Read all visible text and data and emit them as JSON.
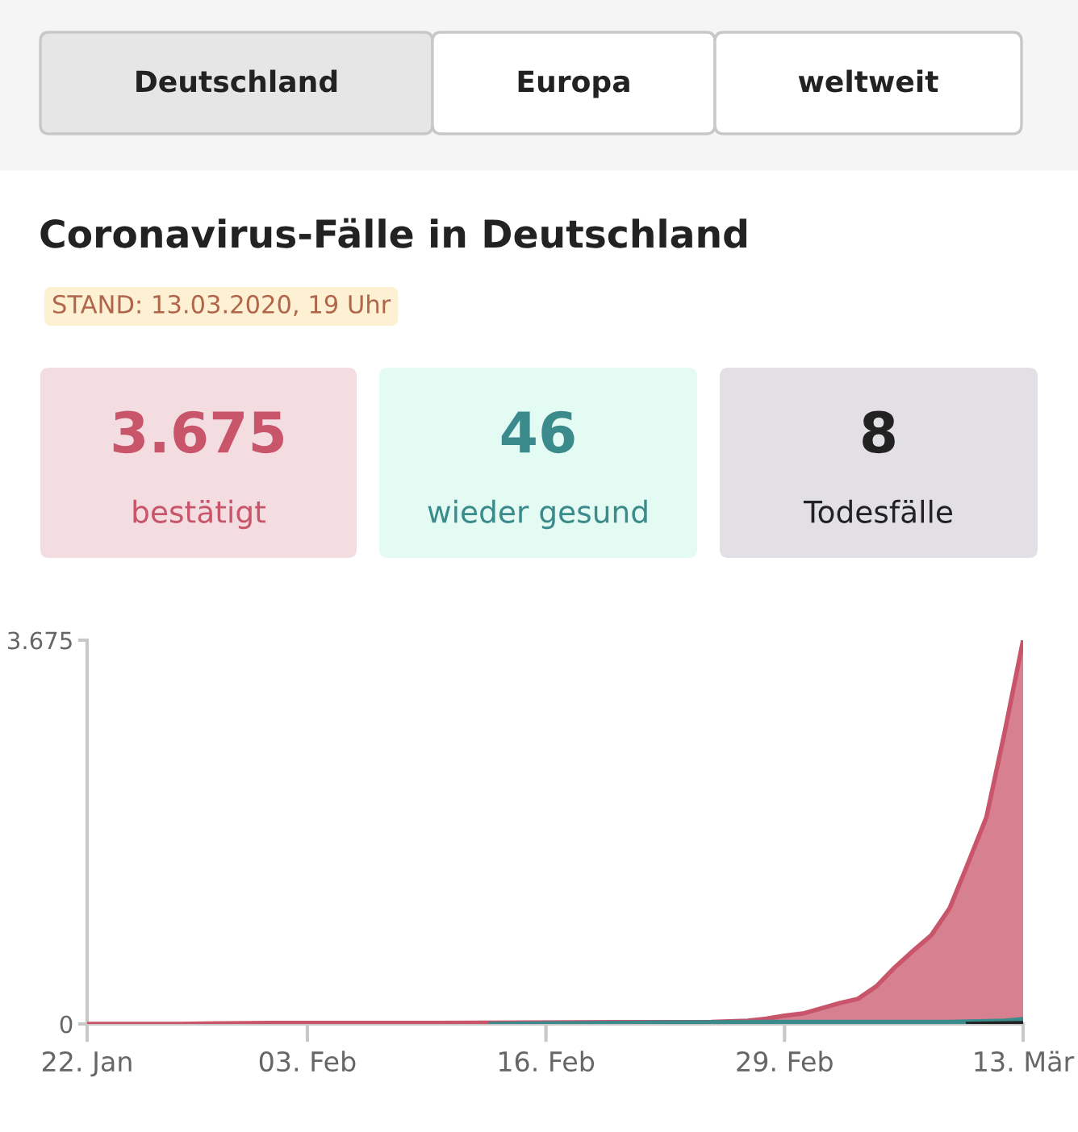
{
  "chart_data": {
    "type": "area",
    "title": "Coronavirus-Fälle in Deutschland",
    "subtitle": "STAND: 13.03.2020, 19 Uhr",
    "annotations": [
      "Deutschland",
      "Europa",
      "weltweit",
      "3.675",
      "bestätigt",
      "46",
      "wieder gesund",
      "8",
      "Todesfälle"
    ],
    "series": [
      {
        "color": "#c9556b",
        "x": [
          "2020-01-22",
          "2020-01-27",
          "2020-02-01",
          "2020-02-10",
          "2020-02-25",
          "2020-02-27",
          "2020-02-28",
          "2020-02-29",
          "2020-03-01",
          "2020-03-02",
          "2020-03-03",
          "2020-03-04",
          "2020-03-05",
          "2020-03-06",
          "2020-03-07",
          "2020-03-08",
          "2020-03-09",
          "2020-03-10",
          "2020-03-11",
          "2020-03-12",
          "2020-03-13"
        ],
        "values": [
          0,
          0,
          10,
          10,
          20,
          30,
          50,
          80,
          100,
          150,
          200,
          240,
          360,
          540,
          700,
          850,
          1110,
          1540,
          1980,
          2800,
          3675
        ]
      },
      {
        "type": "line",
        "color": "#3b8a8c",
        "x": [
          "2020-02-13",
          "2020-02-28",
          "2020-03-09",
          "2020-03-12",
          "2020-03-13"
        ],
        "values": [
          0,
          20,
          20,
          30,
          46
        ]
      },
      {
        "type": "line",
        "color": "#222222",
        "x": [
          "2020-03-10",
          "2020-03-13"
        ],
        "values": [
          0,
          8
        ]
      }
    ],
    "xlim": [
      "2020-01-22",
      "2020-03-13"
    ],
    "xticks": [
      {
        "value": "2020-01-22",
        "label": "22. Jan"
      },
      {
        "value": "2020-02-03",
        "label": "03. Feb"
      },
      {
        "value": "2020-02-16",
        "label": "16. Feb"
      },
      {
        "value": "2020-02-29",
        "label": "29. Feb"
      },
      {
        "value": "2020-03-13",
        "label": "13. Mär"
      }
    ],
    "ylim": [
      0,
      3675
    ],
    "yticks": [
      0,
      {
        "value": 3675,
        "label": "3.675"
      }
    ],
    "grid": false,
    "legend": false
  }
}
